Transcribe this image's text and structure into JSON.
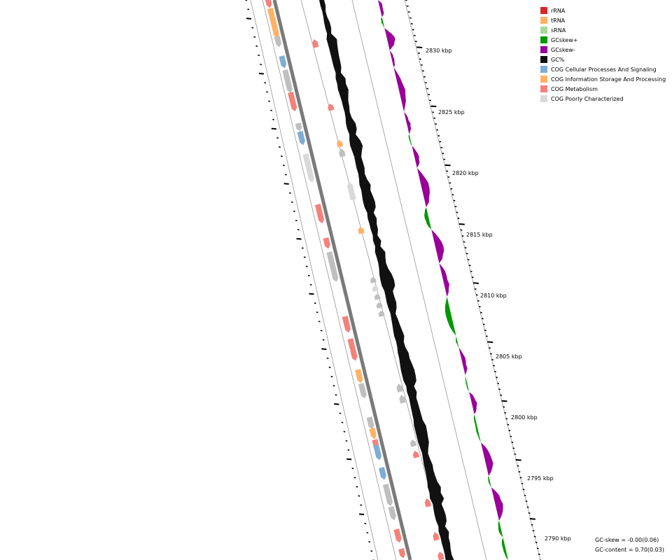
{
  "tick_labels": [
    "2830 kbp",
    "2825 kbp",
    "2820 kbp",
    "2815 kbp",
    "2810 kbp",
    "2805 kbp",
    "2800 kbp",
    "2795 kbp",
    "2790 kbp"
  ],
  "legend": [
    {
      "label": "rRNA",
      "color": "#d62728"
    },
    {
      "label": "tRNA",
      "color": "#ffb266"
    },
    {
      "label": "sRNA",
      "color": "#a6d89a"
    },
    {
      "label": "GCskew+",
      "color": "#009900"
    },
    {
      "label": "GCskew-",
      "color": "#990099"
    },
    {
      "label": "GC%",
      "color": "#111111"
    },
    {
      "label": "COG Cellular Processes And Signaling",
      "color": "#7eadd6"
    },
    {
      "label": "COG Information Storage And Processing",
      "color": "#ffb266"
    },
    {
      "label": "COG Metabolism",
      "color": "#f4827a"
    },
    {
      "label": "COG Poorly Characterized",
      "color": "#d9d9d9"
    }
  ],
  "stats": {
    "gc_skew": "GC-skew = -0.00(0.06)",
    "gc_content": "GC-content = 0.70(0.03)"
  },
  "features": {
    "forward": [
      {
        "t": 0.0,
        "len": 16,
        "cog": "metabolism"
      },
      {
        "t": 0.02,
        "len": 44,
        "cog": "information"
      },
      {
        "t": 0.07,
        "len": 16,
        "cog": "poorly"
      },
      {
        "t": 0.105,
        "len": 18,
        "cog": "cellular"
      },
      {
        "t": 0.13,
        "len": 34,
        "cog": "poorly"
      },
      {
        "t": 0.17,
        "len": 28,
        "cog": "metabolism"
      },
      {
        "t": 0.225,
        "len": 12,
        "cog": "poorly"
      },
      {
        "t": 0.24,
        "len": 20,
        "cog": "cellular"
      },
      {
        "t": 0.28,
        "len": 42,
        "cog": "poorly_light"
      },
      {
        "t": 0.37,
        "len": 28,
        "cog": "metabolism"
      },
      {
        "t": 0.43,
        "len": 16,
        "cog": "metabolism"
      },
      {
        "t": 0.455,
        "len": 44,
        "cog": "poorly"
      },
      {
        "t": 0.57,
        "len": 24,
        "cog": "metabolism"
      },
      {
        "t": 0.61,
        "len": 20,
        "cog": "metabolism"
      },
      {
        "t": 0.63,
        "len": 16,
        "cog": "metabolism"
      },
      {
        "t": 0.665,
        "len": 20,
        "cog": "information"
      },
      {
        "t": 0.69,
        "len": 22,
        "cog": "poorly"
      },
      {
        "t": 0.75,
        "len": 18,
        "cog": "poorly"
      },
      {
        "t": 0.77,
        "len": 16,
        "cog": "information"
      },
      {
        "t": 0.79,
        "len": 16,
        "cog": "metabolism"
      },
      {
        "t": 0.8,
        "len": 22,
        "cog": "cellular"
      },
      {
        "t": 0.84,
        "len": 18,
        "cog": "cellular"
      },
      {
        "t": 0.87,
        "len": 32,
        "cog": "poorly"
      },
      {
        "t": 0.91,
        "len": 20,
        "cog": "poorly"
      },
      {
        "t": 0.95,
        "len": 20,
        "cog": "metabolism"
      },
      {
        "t": 0.985,
        "len": 14,
        "cog": "metabolism"
      }
    ],
    "reverse": [
      {
        "t": 0.075,
        "len": 12,
        "cog": "metabolism"
      },
      {
        "t": 0.19,
        "len": 10,
        "cog": "metabolism"
      },
      {
        "t": 0.255,
        "len": 10,
        "cog": "information"
      },
      {
        "t": 0.27,
        "len": 12,
        "cog": "poorly"
      },
      {
        "t": 0.33,
        "len": 26,
        "cog": "poorly_light"
      },
      {
        "t": 0.41,
        "len": 10,
        "cog": "information"
      },
      {
        "t": 0.5,
        "len": 8,
        "cog": "poorly"
      },
      {
        "t": 0.515,
        "len": 8,
        "cog": "poorly_light"
      },
      {
        "t": 0.53,
        "len": 8,
        "cog": "poorly"
      },
      {
        "t": 0.545,
        "len": 8,
        "cog": "poorly"
      },
      {
        "t": 0.56,
        "len": 8,
        "cog": "poorly"
      },
      {
        "t": 0.69,
        "len": 12,
        "cog": "poorly"
      },
      {
        "t": 0.71,
        "len": 12,
        "cog": "poorly"
      },
      {
        "t": 0.79,
        "len": 10,
        "cog": "poorly"
      },
      {
        "t": 0.81,
        "len": 10,
        "cog": "metabolism"
      },
      {
        "t": 0.895,
        "len": 12,
        "cog": "metabolism"
      },
      {
        "t": 0.955,
        "len": 12,
        "cog": "metabolism"
      },
      {
        "t": 0.99,
        "len": 12,
        "cog": "metabolism"
      }
    ]
  }
}
